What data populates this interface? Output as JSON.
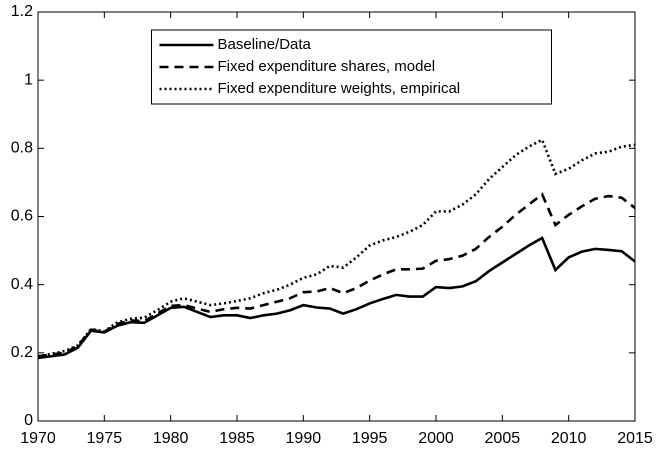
{
  "chart_data": {
    "type": "line",
    "x": [
      1970,
      1971,
      1972,
      1973,
      1974,
      1975,
      1976,
      1977,
      1978,
      1979,
      1980,
      1981,
      1982,
      1983,
      1984,
      1985,
      1986,
      1987,
      1988,
      1989,
      1990,
      1991,
      1992,
      1993,
      1994,
      1995,
      1996,
      1997,
      1998,
      1999,
      2000,
      2001,
      2002,
      2003,
      2004,
      2005,
      2006,
      2007,
      2008,
      2009,
      2010,
      2011,
      2012,
      2013,
      2014,
      2015
    ],
    "series": [
      {
        "name": "Baseline/Data",
        "color": "#000000",
        "style": "solid",
        "values": [
          0.185,
          0.19,
          0.195,
          0.215,
          0.265,
          0.26,
          0.28,
          0.29,
          0.288,
          0.31,
          0.332,
          0.335,
          0.32,
          0.305,
          0.31,
          0.31,
          0.302,
          0.31,
          0.315,
          0.325,
          0.34,
          0.333,
          0.33,
          0.315,
          0.328,
          0.345,
          0.358,
          0.37,
          0.365,
          0.365,
          0.393,
          0.39,
          0.395,
          0.41,
          0.44,
          0.465,
          0.49,
          0.515,
          0.537,
          0.443,
          0.48,
          0.497,
          0.505,
          0.502,
          0.498,
          0.468
        ]
      },
      {
        "name": "Fixed expenditure shares, model",
        "color": "#000000",
        "style": "dashed",
        "values": [
          0.19,
          0.195,
          0.2,
          0.22,
          0.268,
          0.262,
          0.285,
          0.295,
          0.293,
          0.315,
          0.338,
          0.34,
          0.33,
          0.32,
          0.328,
          0.332,
          0.33,
          0.34,
          0.35,
          0.36,
          0.378,
          0.38,
          0.39,
          0.375,
          0.39,
          0.412,
          0.43,
          0.445,
          0.445,
          0.447,
          0.47,
          0.475,
          0.485,
          0.505,
          0.54,
          0.57,
          0.605,
          0.635,
          0.665,
          0.575,
          0.605,
          0.63,
          0.652,
          0.66,
          0.655,
          0.625
        ]
      },
      {
        "name": "Fixed expenditure weights, empirical",
        "color": "#000000",
        "style": "dotted",
        "values": [
          0.19,
          0.197,
          0.205,
          0.222,
          0.27,
          0.263,
          0.29,
          0.3,
          0.303,
          0.325,
          0.35,
          0.36,
          0.35,
          0.34,
          0.345,
          0.352,
          0.36,
          0.375,
          0.385,
          0.4,
          0.42,
          0.43,
          0.455,
          0.45,
          0.48,
          0.515,
          0.53,
          0.54,
          0.555,
          0.575,
          0.615,
          0.615,
          0.635,
          0.665,
          0.71,
          0.745,
          0.78,
          0.805,
          0.825,
          0.725,
          0.74,
          0.765,
          0.785,
          0.79,
          0.805,
          0.81
        ]
      }
    ],
    "xlim": [
      1970,
      2015
    ],
    "xticks": [
      1970,
      1975,
      1980,
      1985,
      1990,
      1995,
      2000,
      2005,
      2010,
      2015
    ],
    "ylim": [
      0,
      1.2
    ],
    "yticks": [
      0,
      0.2,
      0.4,
      0.6,
      0.8,
      1,
      1.2
    ],
    "legend": "top-center"
  }
}
